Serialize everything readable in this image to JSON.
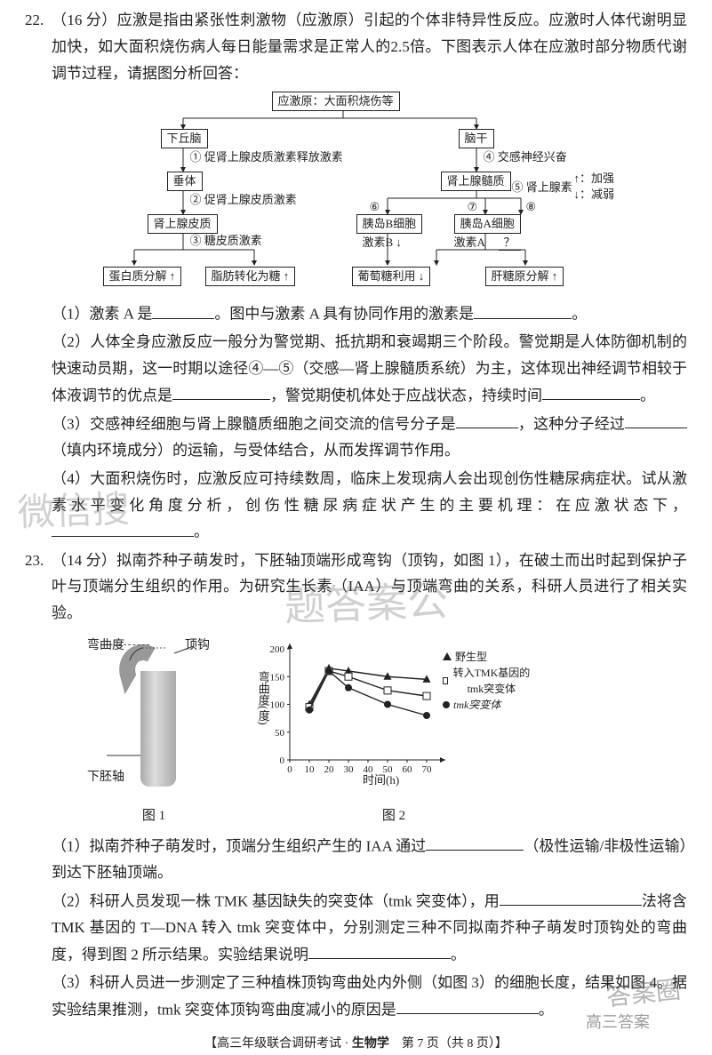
{
  "q22": {
    "number": "22.",
    "points": "（16 分）",
    "stem": "应激是指由紧张性刺激物（应激原）引起的个体非特异性反应。应激时人体代谢明显加快，如大面积烧伤病人每日能量需求是正常人的2.5倍。下图表示人体在应激时部分物质代谢调节过程，请据图分析回答：",
    "flow": {
      "stimulus": "应激原：大面积烧伤等",
      "hypothalamus": "下丘脑",
      "brainstem": "脑干",
      "pituitary": "垂体",
      "adrenal_medulla": "肾上腺髓质",
      "adrenal_cortex": "肾上腺皮质",
      "islet_b": "胰岛B细胞",
      "islet_a": "胰岛A细胞",
      "h1": "① 促肾上腺皮质激素释放激素",
      "h2": "② 促肾上腺皮质激素",
      "h3": "③ 糖皮质激素",
      "h4": "④ 交感神经兴奋",
      "h5": "⑤ 肾上腺素",
      "h6": "⑥",
      "h7": "⑦",
      "h8": "⑧",
      "hb": "激素B ↓",
      "ha": "激素A",
      "effect1": "蛋白质分解 ↑",
      "effect2": "脂肪转化为糖 ↑",
      "effect3": "葡萄糖利用 ↓",
      "effect4": "肝糖原分解 ↑",
      "legend_up": "↑：加强",
      "legend_down": "↓：减弱",
      "question": "？"
    },
    "sub1_a": "（1）激素 A 是",
    "sub1_b": "。图中与激素 A 具有协同作用的激素是",
    "sub1_c": "。",
    "sub2_a": "（2）人体全身应激反应一般分为警觉期、抵抗期和衰竭期三个阶段。警觉期是人体防御机制的快速动员期，这一时期以途径④—⑤（交感—肾上腺髓质系统）为主，这体现出神经调节相较于体液调节的优点是",
    "sub2_b": "，警觉期使机体处于应战状态，持续时间",
    "sub2_c": "。",
    "sub3_a": "（3）交感神经细胞与肾上腺髓质细胞之间交流的信号分子是",
    "sub3_b": "，这种分子经过",
    "sub3_c": "（填内环境成分）的运输，与受体结合，从而发挥调节作用。",
    "sub4_a": "（4）大面积烧伤时，应激反应可持续数周，临床上发现病人会出现创伤性糖尿病症状。试从激素水平变化角度分析，创伤性糖尿病症状产生的主要机理：在应激状态下，",
    "sub4_b": "。"
  },
  "q23": {
    "number": "23.",
    "points": "（14 分）",
    "stem": "拟南芥种子萌发时，下胚轴顶端形成弯钩（顶钩，如图 1），在破土而出时起到保护子叶与顶端分生组织的作用。为研究生长素（IAA）与顶端弯曲的关系，科研人员进行了相关实验。",
    "fig1": {
      "label_bend": "弯曲度",
      "label_hook": "顶钩",
      "label_hypocotyl": "下胚轴",
      "caption": "图 1"
    },
    "fig2": {
      "ylabel": "弯曲度(度)",
      "xlabel": "时间(h)",
      "xticks": [
        "0",
        "10",
        "20",
        "30",
        "40",
        "50",
        "60",
        "70"
      ],
      "yticks": [
        "0",
        "50",
        "100",
        "150",
        "200"
      ],
      "legend": {
        "wt": "野生型",
        "tmk_rescue": "转入TMK基因的tmk突变体",
        "tmk": "tmk突变体"
      },
      "caption": "图 2",
      "series": {
        "wt": [
          [
            10,
            100
          ],
          [
            20,
            165
          ],
          [
            30,
            160
          ],
          [
            50,
            150
          ],
          [
            70,
            145
          ]
        ],
        "rescue": [
          [
            10,
            95
          ],
          [
            20,
            160
          ],
          [
            30,
            150
          ],
          [
            50,
            125
          ],
          [
            70,
            115
          ]
        ],
        "tmk": [
          [
            10,
            90
          ],
          [
            20,
            160
          ],
          [
            30,
            130
          ],
          [
            50,
            100
          ],
          [
            70,
            80
          ]
        ]
      },
      "ylim": [
        0,
        200
      ],
      "xlim": [
        0,
        75
      ]
    },
    "sub1_a": "（1）拟南芥种子萌发时，顶端分生组织产生的 IAA 通过",
    "sub1_b": "（极性运输/非极性运输）到达下胚轴顶端。",
    "sub2_a": "（2）科研人员发现一株 TMK 基因缺失的突变体（tmk 突变体），用",
    "sub2_b": "法将含 TMK 基因的 T—DNA 转入 tmk 突变体中，分别测定三种不同拟南芥种子萌发时顶钩处的弯曲度，得到图 2 所示结果。实验结果说明",
    "sub2_c": "。",
    "sub3_a": "（3）科研人员进一步测定了三种植株顶钩弯曲处内外侧（如图 3）的细胞长度，结果如图 4。据实验结果推测，tmk 突变体顶钩弯曲度减小的原因是",
    "sub3_b": "。"
  },
  "footer": {
    "line": "【高三年级联合调研考试 · ",
    "subject": "生物学",
    "page": "　第 7 页（共 8 页）】"
  },
  "watermarks": {
    "w1": "微信搜",
    "w2": "题答案公",
    "stamp_big": "答案圈",
    "stamp_small": "高三答案"
  }
}
